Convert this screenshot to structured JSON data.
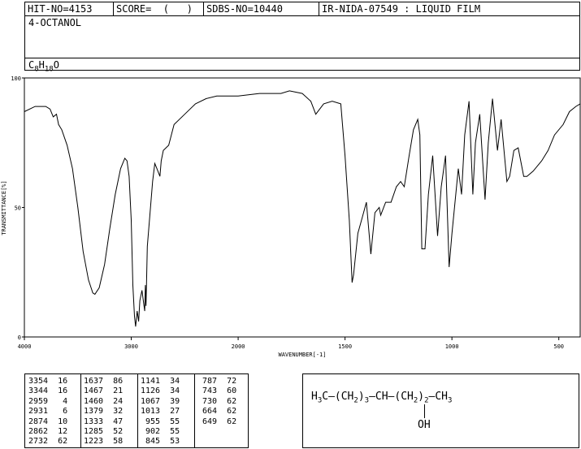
{
  "header": {
    "hit_no": "HIT-NO=4153",
    "score": "SCORE=  (   )",
    "sdbs_no": "SDBS-NO=10440",
    "ir_info": "IR-NIDA-07549 : LIQUID FILM",
    "compound_name": "4-OCTANOL",
    "formula": {
      "c": "C",
      "c_n": "8",
      "h": "H",
      "h_n": "18",
      "o": "O"
    }
  },
  "chart_data": {
    "type": "line",
    "title": "",
    "xlabel": "WAVENUMBER[-1]",
    "ylabel": "TRANSMITTANCE[%]",
    "xlim": [
      4000,
      400
    ],
    "ylim": [
      0,
      100
    ],
    "x_ticks": [
      "4000",
      "3000",
      "2000",
      "1500",
      "1000",
      "500"
    ],
    "y_ticks": [
      "0",
      "50",
      "100"
    ],
    "grid": false,
    "spectrum": [
      [
        4000,
        87
      ],
      [
        3900,
        89
      ],
      [
        3800,
        89
      ],
      [
        3760,
        88
      ],
      [
        3730,
        85
      ],
      [
        3700,
        86
      ],
      [
        3680,
        82
      ],
      [
        3650,
        80
      ],
      [
        3600,
        74
      ],
      [
        3550,
        65
      ],
      [
        3500,
        50
      ],
      [
        3450,
        33
      ],
      [
        3400,
        22
      ],
      [
        3360,
        17
      ],
      [
        3340,
        16.5
      ],
      [
        3300,
        19
      ],
      [
        3250,
        28
      ],
      [
        3200,
        42
      ],
      [
        3150,
        55
      ],
      [
        3100,
        65
      ],
      [
        3060,
        69
      ],
      [
        3040,
        68
      ],
      [
        3020,
        62
      ],
      [
        3000,
        45
      ],
      [
        2985,
        20
      ],
      [
        2970,
        8
      ],
      [
        2959,
        4
      ],
      [
        2945,
        10
      ],
      [
        2931,
        6
      ],
      [
        2920,
        14
      ],
      [
        2900,
        18
      ],
      [
        2874,
        10
      ],
      [
        2868,
        20
      ],
      [
        2862,
        12
      ],
      [
        2850,
        35
      ],
      [
        2800,
        60
      ],
      [
        2780,
        67
      ],
      [
        2760,
        65
      ],
      [
        2732,
        62
      ],
      [
        2720,
        68
      ],
      [
        2700,
        72
      ],
      [
        2650,
        74
      ],
      [
        2600,
        82
      ],
      [
        2500,
        86
      ],
      [
        2400,
        90
      ],
      [
        2300,
        92
      ],
      [
        2200,
        93
      ],
      [
        2000,
        93
      ],
      [
        1900,
        94
      ],
      [
        1800,
        94
      ],
      [
        1760,
        95
      ],
      [
        1700,
        94
      ],
      [
        1660,
        91
      ],
      [
        1637,
        86
      ],
      [
        1600,
        90
      ],
      [
        1560,
        91
      ],
      [
        1520,
        90
      ],
      [
        1500,
        70
      ],
      [
        1480,
        45
      ],
      [
        1467,
        21
      ],
      [
        1460,
        24
      ],
      [
        1440,
        40
      ],
      [
        1420,
        46
      ],
      [
        1400,
        52
      ],
      [
        1379,
        32
      ],
      [
        1360,
        48
      ],
      [
        1340,
        50
      ],
      [
        1333,
        47
      ],
      [
        1310,
        52
      ],
      [
        1285,
        52
      ],
      [
        1260,
        58
      ],
      [
        1240,
        60
      ],
      [
        1223,
        58
      ],
      [
        1200,
        70
      ],
      [
        1180,
        80
      ],
      [
        1160,
        84
      ],
      [
        1150,
        78
      ],
      [
        1141,
        34
      ],
      [
        1126,
        34
      ],
      [
        1110,
        55
      ],
      [
        1090,
        70
      ],
      [
        1067,
        39
      ],
      [
        1050,
        58
      ],
      [
        1030,
        70
      ],
      [
        1013,
        27
      ],
      [
        1000,
        40
      ],
      [
        970,
        65
      ],
      [
        955,
        55
      ],
      [
        940,
        78
      ],
      [
        920,
        91
      ],
      [
        902,
        55
      ],
      [
        890,
        75
      ],
      [
        870,
        86
      ],
      [
        845,
        53
      ],
      [
        830,
        75
      ],
      [
        810,
        92
      ],
      [
        787,
        72
      ],
      [
        770,
        84
      ],
      [
        743,
        60
      ],
      [
        730,
        62
      ],
      [
        710,
        72
      ],
      [
        690,
        73
      ],
      [
        664,
        62
      ],
      [
        649,
        62
      ],
      [
        620,
        64
      ],
      [
        580,
        68
      ],
      [
        550,
        72
      ],
      [
        520,
        78
      ],
      [
        480,
        82
      ],
      [
        450,
        87
      ],
      [
        420,
        89
      ],
      [
        400,
        90
      ]
    ]
  },
  "peaks": [
    [
      "3354",
      "16"
    ],
    [
      "3344",
      "16"
    ],
    [
      "2959",
      "4"
    ],
    [
      "2931",
      "6"
    ],
    [
      "2874",
      "10"
    ],
    [
      "2862",
      "12"
    ],
    [
      "2732",
      "62"
    ],
    [
      "1637",
      "86"
    ],
    [
      "1467",
      "21"
    ],
    [
      "1460",
      "24"
    ],
    [
      "1379",
      "32"
    ],
    [
      "1333",
      "47"
    ],
    [
      "1285",
      "52"
    ],
    [
      "1223",
      "58"
    ],
    [
      "1141",
      "34"
    ],
    [
      "1126",
      "34"
    ],
    [
      "1067",
      "39"
    ],
    [
      "1013",
      "27"
    ],
    [
      "955",
      "55"
    ],
    [
      "902",
      "55"
    ],
    [
      "845",
      "53"
    ],
    [
      "787",
      "72"
    ],
    [
      "743",
      "60"
    ],
    [
      "730",
      "62"
    ],
    [
      "664",
      "62"
    ],
    [
      "649",
      "62"
    ]
  ],
  "structure": {
    "h": "H",
    "h_sub": "3",
    "c1": "C—(CH",
    "sub1": "2",
    "mid1": ")",
    "rep1": "3",
    "mid2": "—CH—(CH",
    "sub2": "2",
    "mid3": ")",
    "rep2": "2",
    "end": "—CH",
    "end_sub": "3",
    "oh": "OH"
  }
}
